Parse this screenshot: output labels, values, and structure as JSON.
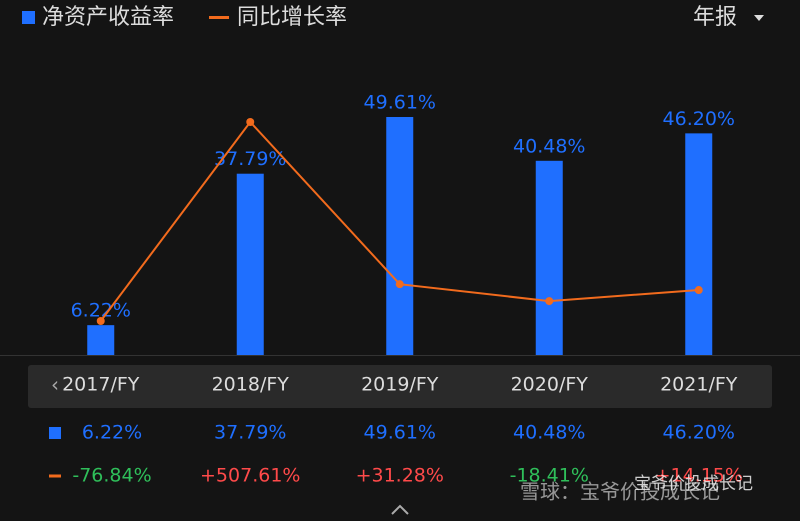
{
  "header": {
    "period": "年报"
  },
  "chart_data": {
    "type": "combo",
    "categories": [
      "2017/FY",
      "2018/FY",
      "2019/FY",
      "2020/FY",
      "2021/FY"
    ],
    "series": [
      {
        "name": "净资产收益率",
        "type": "bar",
        "color": "#1f6fff",
        "values": [
          6.22,
          37.79,
          49.61,
          40.48,
          46.2
        ],
        "value_labels": [
          "6.22%",
          "37.79%",
          "49.61%",
          "40.48%",
          "46.20%"
        ]
      },
      {
        "name": "同比增长率",
        "type": "line",
        "color": "#f26b1d",
        "values": [
          -76.84,
          507.61,
          31.28,
          -18.41,
          14.15
        ],
        "value_labels": [
          "-76.84%",
          "+507.61%",
          "+31.28%",
          "-18.41%",
          "+14.15%"
        ]
      }
    ],
    "positive_color": "#ff4a4a",
    "negative_color": "#2fbf5a"
  },
  "watermark": {
    "account": "宝爷价投成长记",
    "platform": "雪球：宝爷价投成长记"
  }
}
